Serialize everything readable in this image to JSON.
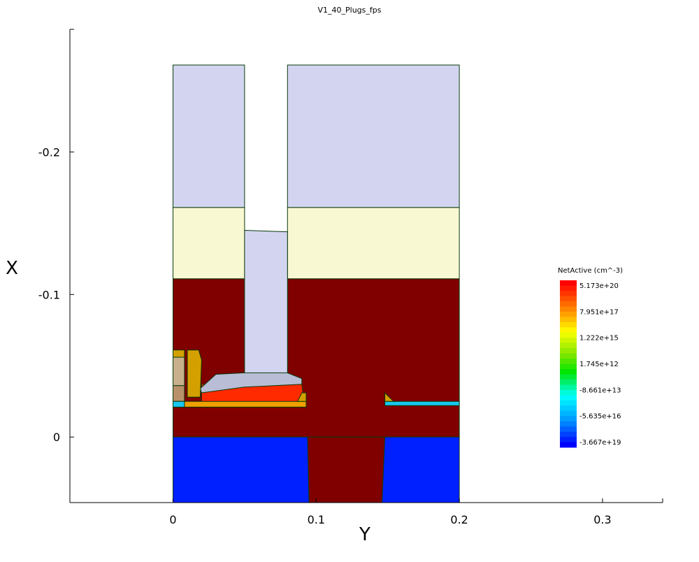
{
  "chart_data": {
    "type": "heatmap",
    "title": "V1_40_Plugs_fps",
    "xlabel": "Y",
    "ylabel": "X",
    "xlim": [
      -0.072,
      0.342
    ],
    "ylim": [
      0.046,
      -0.286
    ],
    "x_ticks": [
      {
        "value": 0,
        "label": "0"
      },
      {
        "value": 0.1,
        "label": "0.1"
      },
      {
        "value": 0.2,
        "label": "0.2"
      },
      {
        "value": 0.3,
        "label": "0.3"
      }
    ],
    "y_ticks": [
      {
        "value": -0.2,
        "label": "-0.2"
      },
      {
        "value": -0.1,
        "label": "-0.1"
      },
      {
        "value": 0,
        "label": "0"
      }
    ],
    "colorbar": {
      "title": "NetActive (cm^-3)",
      "labels": [
        "5.173e+20",
        "7.951e+17",
        "1.222e+15",
        "1.745e+12",
        "-8.661e+13",
        "-5.635e+16",
        "-3.667e+19"
      ]
    },
    "regions": [
      {
        "name": "top-oxide-left",
        "material": "oxide",
        "color": "#d3d5f0",
        "pts": [
          [
            0,
            -0.261
          ],
          [
            0.05,
            -0.261
          ],
          [
            0.05,
            -0.161
          ],
          [
            0,
            -0.161
          ]
        ]
      },
      {
        "name": "top-oxide-right",
        "material": "oxide",
        "color": "#d3d5f0",
        "pts": [
          [
            0.08,
            -0.261
          ],
          [
            0.2,
            -0.261
          ],
          [
            0.2,
            -0.161
          ],
          [
            0.08,
            -0.161
          ]
        ]
      },
      {
        "name": "nitride-left",
        "material": "nitride",
        "color": "#f8f8d3",
        "pts": [
          [
            0,
            -0.161
          ],
          [
            0.05,
            -0.161
          ],
          [
            0.05,
            -0.111
          ],
          [
            0,
            -0.111
          ]
        ]
      },
      {
        "name": "nitride-right",
        "material": "nitride",
        "color": "#f8f8d3",
        "pts": [
          [
            0.08,
            -0.161
          ],
          [
            0.2,
            -0.161
          ],
          [
            0.2,
            -0.111
          ],
          [
            0.08,
            -0.111
          ]
        ]
      },
      {
        "name": "substrate-upper",
        "material": "silicon-n",
        "color": "#800000",
        "pts": [
          [
            0,
            -0.111
          ],
          [
            0.05,
            -0.111
          ],
          [
            0.05,
            -0.046
          ],
          [
            0.08,
            -0.046
          ],
          [
            0.08,
            -0.111
          ],
          [
            0.2,
            -0.111
          ],
          [
            0.2,
            0
          ],
          [
            0,
            0
          ]
        ]
      },
      {
        "name": "substrate-pillar",
        "material": "silicon-n",
        "color": "#800000",
        "pts": [
          [
            0.094,
            0
          ],
          [
            0.148,
            0
          ],
          [
            0.146,
            0.046
          ],
          [
            0.095,
            0.046
          ]
        ]
      },
      {
        "name": "contact-plug",
        "material": "plug",
        "color": "#d3d5f0",
        "pts": [
          [
            0.05,
            -0.145
          ],
          [
            0.08,
            -0.144
          ],
          [
            0.08,
            -0.044
          ],
          [
            0.05,
            -0.045
          ]
        ]
      },
      {
        "name": "bottom-well-left",
        "material": "silicon-p",
        "color": "#0020ff",
        "pts": [
          [
            0,
            0
          ],
          [
            0.094,
            0
          ],
          [
            0.095,
            0.046
          ],
          [
            0,
            0.046
          ]
        ]
      },
      {
        "name": "bottom-well-right",
        "material": "silicon-p",
        "color": "#0020ff",
        "pts": [
          [
            0.148,
            0
          ],
          [
            0.2,
            0
          ],
          [
            0.2,
            0.046
          ],
          [
            0.146,
            0.046
          ]
        ]
      },
      {
        "name": "active-n-region",
        "material": "doped",
        "color": "#ff2a00",
        "pts": [
          [
            0.02,
            -0.021
          ],
          [
            0.092,
            -0.021
          ],
          [
            0.09,
            -0.037
          ],
          [
            0.02,
            -0.037
          ]
        ]
      },
      {
        "name": "silicide-cap",
        "material": "silicide",
        "color": "#b9bdd6",
        "pts": [
          [
            0.02,
            -0.031
          ],
          [
            0.05,
            -0.035
          ],
          [
            0.09,
            -0.037
          ],
          [
            0.09,
            -0.041
          ],
          [
            0.08,
            -0.045
          ],
          [
            0.05,
            -0.045
          ],
          [
            0.03,
            -0.044
          ],
          [
            0.019,
            -0.034
          ]
        ]
      },
      {
        "name": "left-spacer-gold",
        "material": "spacer",
        "color": "#d4a000",
        "pts": [
          [
            0.01,
            -0.061
          ],
          [
            0.018,
            -0.061
          ],
          [
            0.02,
            -0.054
          ],
          [
            0.019,
            -0.028
          ],
          [
            0.01,
            -0.028
          ]
        ]
      },
      {
        "name": "left-spacer-tan",
        "material": "liner",
        "color": "#c8b08c",
        "pts": [
          [
            0,
            -0.056
          ],
          [
            0.008,
            -0.056
          ],
          [
            0.008,
            -0.036
          ],
          [
            0,
            -0.036
          ]
        ]
      },
      {
        "name": "left-spacer-tan2",
        "material": "liner",
        "color": "#b8916a",
        "pts": [
          [
            0,
            -0.036
          ],
          [
            0.008,
            -0.036
          ],
          [
            0.008,
            -0.025
          ],
          [
            0,
            -0.025
          ]
        ]
      },
      {
        "name": "left-spacer-gold2",
        "material": "spacer",
        "color": "#d4a000",
        "pts": [
          [
            0,
            -0.061
          ],
          [
            0.008,
            -0.061
          ],
          [
            0.008,
            -0.056
          ],
          [
            0,
            -0.056
          ]
        ]
      },
      {
        "name": "strip-left",
        "material": "doped-thin",
        "color": "#f0a000",
        "pts": [
          [
            0,
            -0.025
          ],
          [
            0.093,
            -0.025
          ],
          [
            0.093,
            -0.021
          ],
          [
            0,
            -0.021
          ]
        ]
      },
      {
        "name": "strip-left-cyan",
        "material": "doped-thin",
        "color": "#18c8f0",
        "pts": [
          [
            0,
            -0.025
          ],
          [
            0.008,
            -0.025
          ],
          [
            0.008,
            -0.021
          ],
          [
            0,
            -0.021
          ]
        ]
      },
      {
        "name": "strip-right",
        "material": "doped-thin",
        "color": "#18c8f0",
        "pts": [
          [
            0.148,
            -0.025
          ],
          [
            0.2,
            -0.025
          ],
          [
            0.2,
            -0.022
          ],
          [
            0.148,
            -0.022
          ]
        ]
      },
      {
        "name": "spacer-mid",
        "material": "spacer",
        "color": "#d4a000",
        "pts": [
          [
            0.087,
            -0.025
          ],
          [
            0.093,
            -0.025
          ],
          [
            0.093,
            -0.031
          ],
          [
            0.09,
            -0.031
          ]
        ]
      },
      {
        "name": "spacer-right",
        "material": "spacer",
        "color": "#d4a000",
        "pts": [
          [
            0.148,
            -0.031
          ],
          [
            0.154,
            -0.025
          ],
          [
            0.148,
            -0.025
          ]
        ]
      }
    ]
  }
}
